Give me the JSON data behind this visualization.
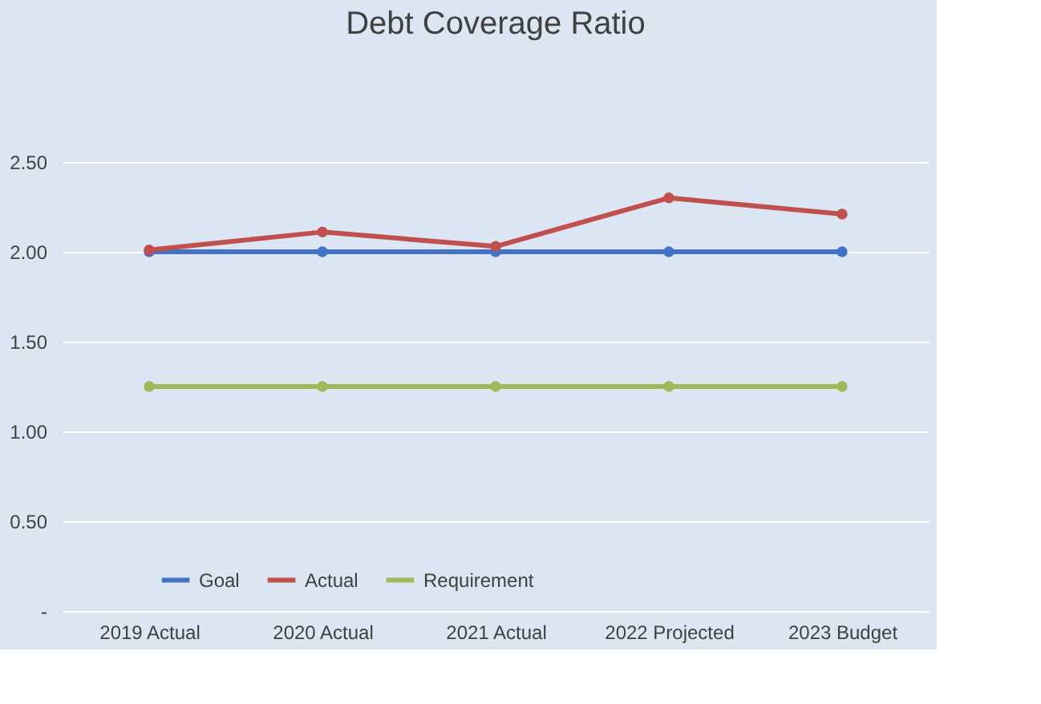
{
  "chart_data": {
    "type": "line",
    "title": "Debt Coverage Ratio",
    "categories": [
      "2019 Actual",
      "2020 Actual",
      "2021 Actual",
      "2022 Projected",
      "2023 Budget"
    ],
    "series": [
      {
        "name": "Goal",
        "color": "#4472c4",
        "values": [
          2.0,
          2.0,
          2.0,
          2.0,
          2.0
        ]
      },
      {
        "name": "Actual",
        "color": "#c0504d",
        "values": [
          2.01,
          2.11,
          2.03,
          2.3,
          2.21
        ]
      },
      {
        "name": "Requirement",
        "color": "#9bbb59",
        "values": [
          1.25,
          1.25,
          1.25,
          1.25,
          1.25
        ]
      }
    ],
    "ylim": [
      0,
      2.5
    ],
    "yticks": [
      {
        "value": 0,
        "label": "-"
      },
      {
        "value": 0.5,
        "label": "0.50"
      },
      {
        "value": 1.0,
        "label": "1.00"
      },
      {
        "value": 1.5,
        "label": "1.50"
      },
      {
        "value": 2.0,
        "label": "2.00"
      },
      {
        "value": 2.5,
        "label": "2.50"
      }
    ],
    "grid": "y",
    "legend": "bottom",
    "marker": "circle",
    "line_style": "solid"
  }
}
